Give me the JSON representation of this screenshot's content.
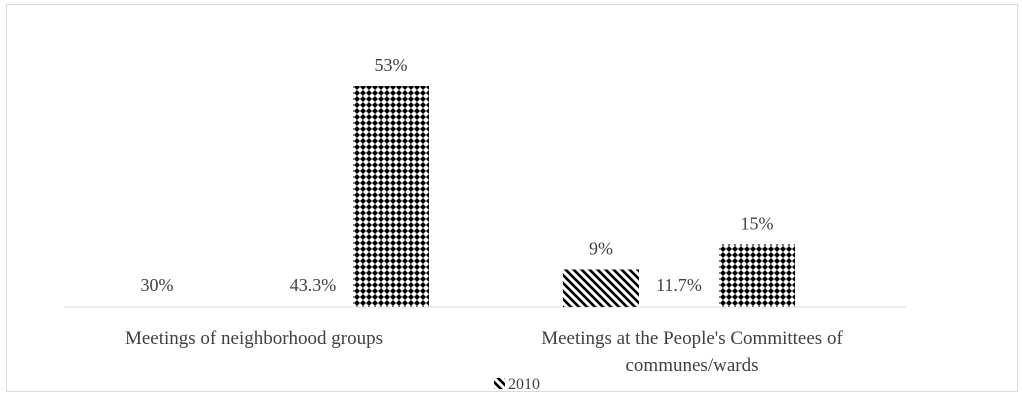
{
  "chart_data": {
    "type": "bar",
    "title": "",
    "xlabel": "",
    "ylabel": "",
    "ylim": [
      0,
      60
    ],
    "grid": false,
    "legend_position": "bottom",
    "categories": [
      [
        "Meetings of neighborhood groups"
      ],
      [
        "Meetings at the People's Committees of",
        "communes/wards"
      ]
    ],
    "series": [
      {
        "name": "",
        "pattern": "none",
        "values": [
          30,
          null
        ],
        "labels": [
          "30%",
          ""
        ]
      },
      {
        "name": "2010",
        "pattern": "diagonal-stripes",
        "values": [
          null,
          9
        ],
        "labels": [
          "",
          "9%"
        ]
      },
      {
        "name": "",
        "pattern": "none",
        "values": [
          43.3,
          11.7
        ],
        "labels": [
          "43.3%",
          "11.7%"
        ]
      },
      {
        "name": "",
        "pattern": "diamond-checker",
        "values": [
          53,
          15
        ],
        "labels": [
          "53%",
          "15%"
        ]
      }
    ],
    "legend": [
      {
        "label": "2010",
        "pattern": "diagonal-stripes"
      }
    ],
    "colors": {
      "mark": "#000000",
      "text": "#404040",
      "axis": "#d9d9d9",
      "frame": "#d9d9d9"
    }
  }
}
